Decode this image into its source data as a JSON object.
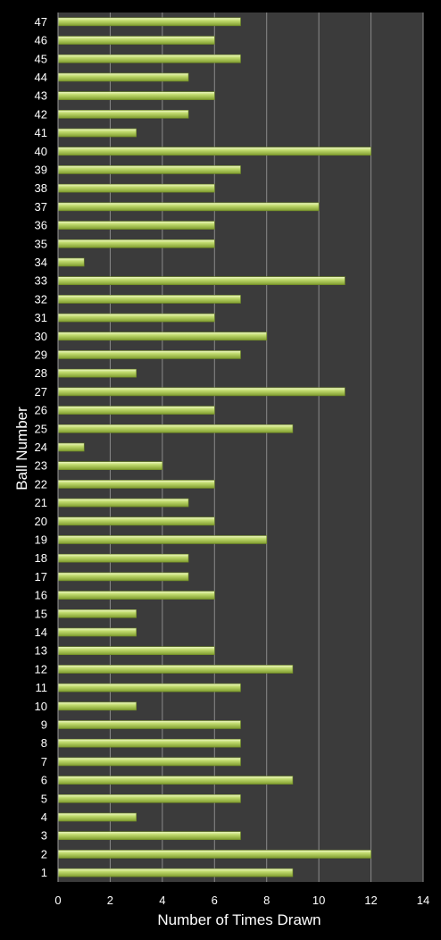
{
  "chart_data": {
    "type": "bar",
    "orientation": "horizontal",
    "title": "",
    "xlabel": "Number of Times Drawn",
    "ylabel": "Ball Number",
    "xlim": [
      0,
      14
    ],
    "x_ticks": [
      0,
      2,
      4,
      6,
      8,
      10,
      12,
      14
    ],
    "grid": "vertical",
    "legend": "none",
    "colors": {
      "background": "#000000",
      "plot_area": "#3b3b3b",
      "grid": "#8a8a8a",
      "bar_fill": "#b8d464",
      "bar_highlight": "#eef7c2",
      "bar_shadow": "#6f8a26",
      "text": "#ffffff"
    },
    "categories": [
      "1",
      "2",
      "3",
      "4",
      "5",
      "6",
      "7",
      "8",
      "9",
      "10",
      "11",
      "12",
      "13",
      "14",
      "15",
      "16",
      "17",
      "18",
      "19",
      "20",
      "21",
      "22",
      "23",
      "24",
      "25",
      "26",
      "27",
      "28",
      "29",
      "30",
      "31",
      "32",
      "33",
      "34",
      "35",
      "36",
      "37",
      "38",
      "39",
      "40",
      "41",
      "42",
      "43",
      "44",
      "45",
      "46",
      "47"
    ],
    "values": [
      9,
      12,
      7,
      3,
      7,
      9,
      7,
      7,
      7,
      3,
      7,
      9,
      6,
      3,
      3,
      6,
      5,
      5,
      8,
      6,
      5,
      6,
      4,
      1,
      9,
      6,
      11,
      3,
      7,
      8,
      6,
      7,
      11,
      1,
      6,
      6,
      10,
      6,
      7,
      12,
      3,
      5,
      6,
      5,
      7,
      6,
      7
    ]
  }
}
